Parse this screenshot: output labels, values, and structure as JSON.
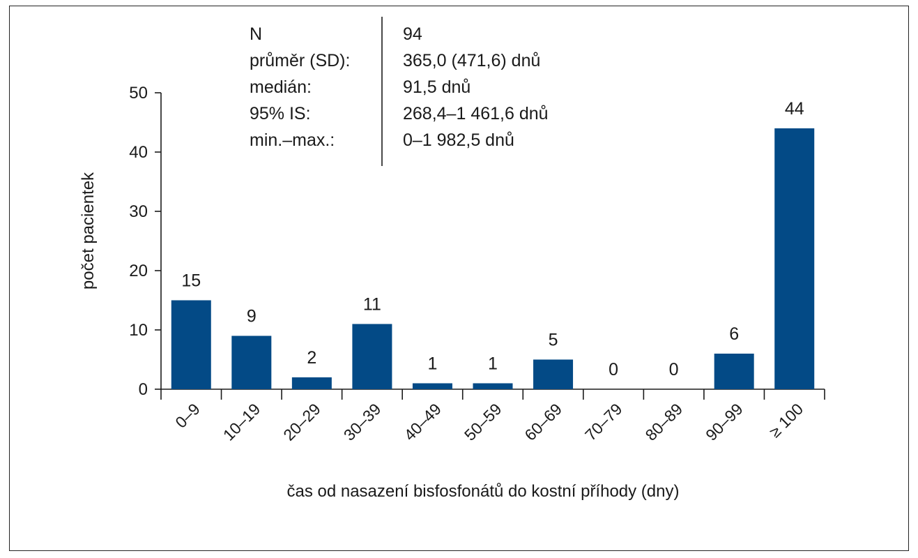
{
  "chart_data": {
    "type": "bar",
    "title": "",
    "xlabel": "čas od nasazení bisfosfonátů do kostní příhody (dny)",
    "ylabel": "počet pacientek",
    "categories": [
      "0–9",
      "10–19",
      "20–29",
      "30–39",
      "40–49",
      "50–59",
      "60–69",
      "70–79",
      "80–89",
      "90–99",
      "≥ 100"
    ],
    "values": [
      15,
      9,
      2,
      11,
      1,
      1,
      5,
      0,
      0,
      6,
      44
    ],
    "data_labels": [
      "15",
      "9",
      "2",
      "11",
      "1",
      "1",
      "5",
      "0",
      "0",
      "6",
      "44"
    ],
    "ylim": [
      0,
      50
    ],
    "yticks": [
      0,
      10,
      20,
      30,
      40,
      50
    ],
    "grid": false,
    "bar_color": "#034a86",
    "stats_box": {
      "rows": [
        {
          "label": "N",
          "value": "94"
        },
        {
          "label": "průměr (SD):",
          "value": "365,0 (471,6) dnů"
        },
        {
          "label": "medián:",
          "value": "91,5 dnů"
        },
        {
          "label": "95% IS:",
          "value": "268,4–1 461,6 dnů"
        },
        {
          "label": "min.–max.:",
          "value": "0–1 982,5 dnů"
        }
      ]
    }
  }
}
